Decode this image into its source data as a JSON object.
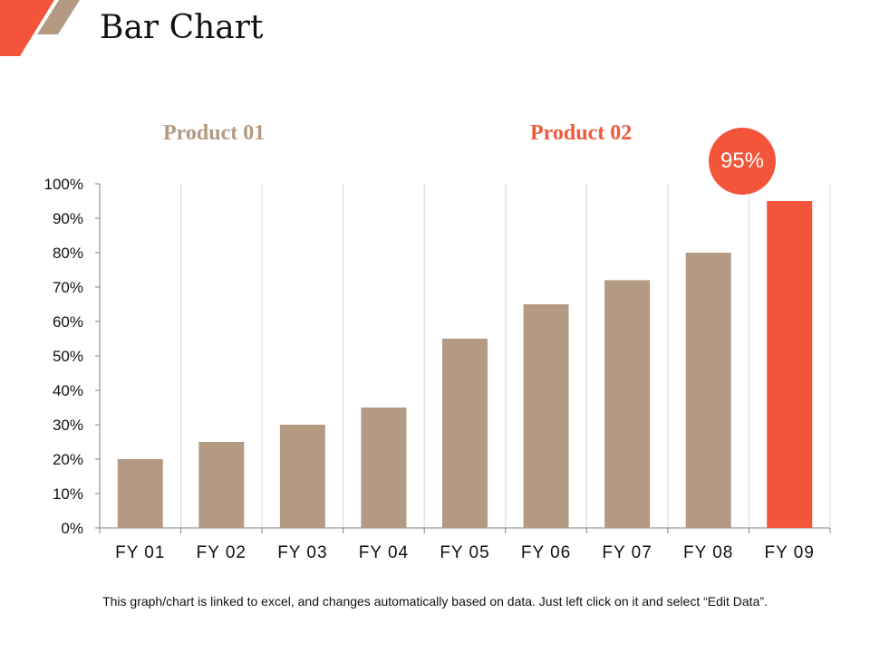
{
  "slide": {
    "title": "Bar Chart",
    "footnote": "This graph/chart is linked to excel, and changes automatically based on data. Just left click on it and select “Edit Data”."
  },
  "legend": {
    "product_01": "Product 01",
    "product_02": "Product 02"
  },
  "callout": {
    "label": "95%"
  },
  "colors": {
    "product_01": "#b49a82",
    "product_02": "#f4553a",
    "accent": "#f05a3c",
    "grid": "#d9d9d9",
    "axis": "#808080"
  },
  "icons": {
    "corner": "orange-tan-diagonal-stripes-icon"
  },
  "chart_data": {
    "type": "bar",
    "title": "",
    "xlabel": "",
    "ylabel": "",
    "categories": [
      "FY 01",
      "FY 02",
      "FY 03",
      "FY 04",
      "FY 05",
      "FY 06",
      "FY 07",
      "FY 08",
      "FY 09"
    ],
    "values": [
      20,
      25,
      30,
      35,
      55,
      65,
      72,
      80,
      95
    ],
    "series_assignment": [
      "Product 01",
      "Product 01",
      "Product 01",
      "Product 01",
      "Product 01",
      "Product 01",
      "Product 01",
      "Product 01",
      "Product 02"
    ],
    "ylim": [
      0,
      100
    ],
    "yticks": [
      "0%",
      "10%",
      "20%",
      "30%",
      "40%",
      "50%",
      "60%",
      "70%",
      "80%",
      "90%",
      "100%"
    ],
    "grid": "vertical",
    "legend": "top"
  }
}
